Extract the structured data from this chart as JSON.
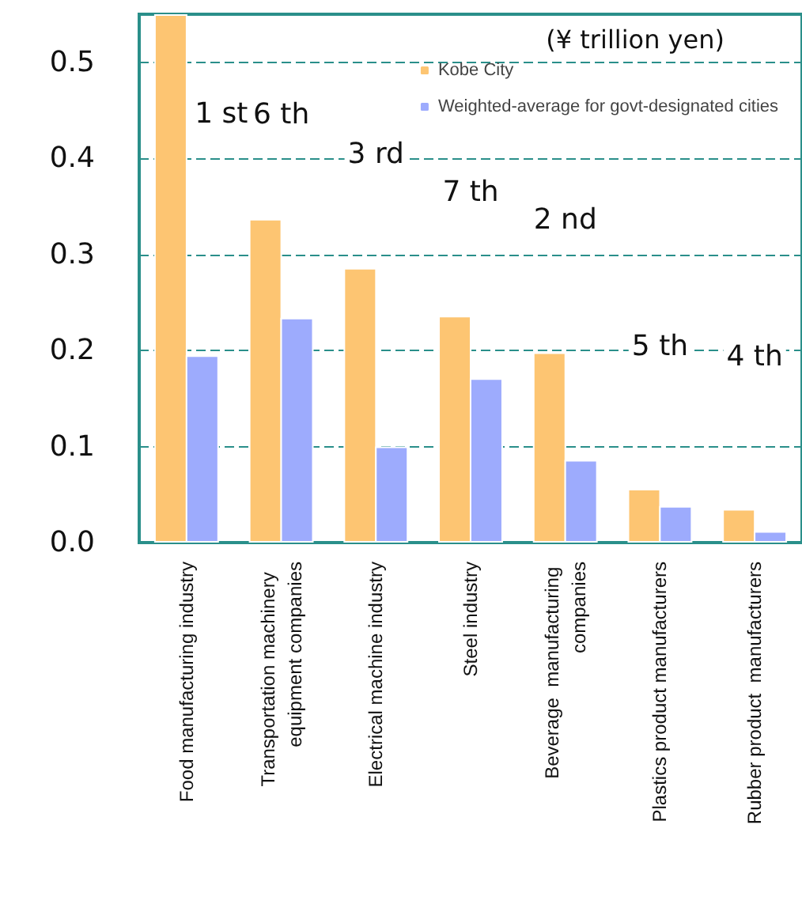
{
  "chart_data": {
    "type": "bar",
    "ylabel": "(¥ trillion yen)",
    "categories": [
      "Food manufacturing industry",
      "Transportation machinery  equipment companies",
      "Electrical machine industry",
      "Steel industry",
      "Beverage  manufacturing companies",
      "Plastics product manufacturers",
      "Rubber product  manufacturers"
    ],
    "series": [
      {
        "name": "Kobe City",
        "color": "#fdc572",
        "values": [
          0.55,
          0.337,
          0.286,
          0.236,
          0.198,
          0.056,
          0.035
        ]
      },
      {
        "name": "Weighted-average for govt-designated cities",
        "color": "#9dabfd",
        "values": [
          0.195,
          0.234,
          0.1,
          0.171,
          0.086,
          0.038,
          0.012
        ]
      }
    ],
    "ylim": [
      0,
      0.55
    ],
    "yticks": [
      {
        "value": 0,
        "label": "0.0"
      },
      0.1,
      0.2,
      0.3,
      0.4,
      0.5
    ],
    "grid": "y",
    "legend": "top right",
    "annotations": [
      "1 st",
      "6 th",
      "3 rd",
      "7 th",
      "2 nd",
      "5 th",
      "4 th"
    ]
  }
}
